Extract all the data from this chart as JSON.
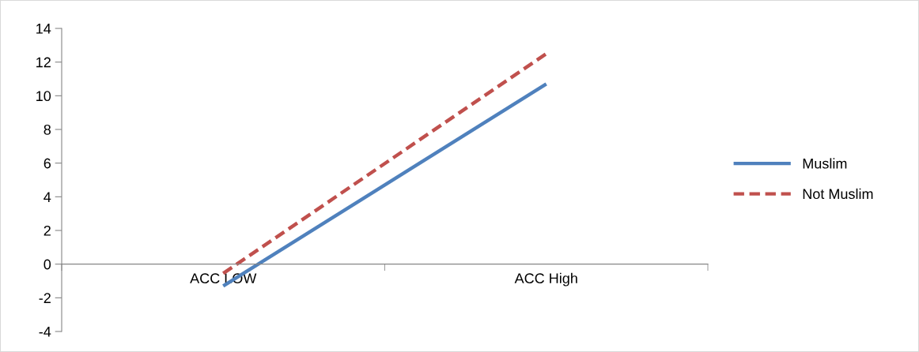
{
  "chart_data": {
    "type": "line",
    "categories": [
      "ACC LOW",
      "ACC High"
    ],
    "series": [
      {
        "name": "Muslim",
        "color": "#4f81bd",
        "values": [
          -1.3,
          10.7
        ],
        "line_style": "solid"
      },
      {
        "name": "Not Muslim",
        "color": "#c0504d",
        "values": [
          -0.55,
          12.5
        ],
        "line_style": "dashed"
      }
    ],
    "ylim": [
      -4,
      14
    ],
    "yticks": [
      -4,
      -2,
      0,
      2,
      4,
      6,
      8,
      10,
      12,
      14
    ],
    "grid": false,
    "legend": "right",
    "marker": "none"
  }
}
